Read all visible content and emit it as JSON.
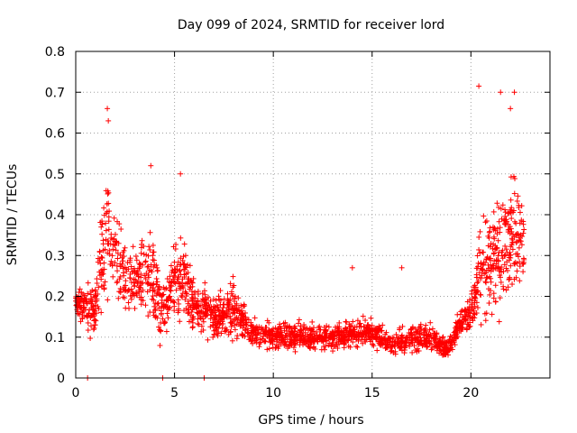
{
  "chart_data": {
    "type": "scatter",
    "title": "Day 099 of 2024, SRMTID for receiver lord",
    "xlabel": "GPS time / hours",
    "ylabel": "SRMTID / TECUs",
    "xlim": [
      0,
      24
    ],
    "ylim": [
      0,
      0.8
    ],
    "xticks": [
      0,
      5,
      10,
      15,
      20
    ],
    "xtick_labels": [
      "0",
      "5",
      "10",
      "15",
      "20"
    ],
    "yticks": [
      0,
      0.1,
      0.2,
      0.3,
      0.4,
      0.5,
      0.6,
      0.7,
      0.8
    ],
    "ytick_labels": [
      "0",
      "0.1",
      "0.2",
      "0.3",
      "0.4",
      "0.5",
      "0.6",
      "0.7",
      "0.8"
    ],
    "grid": true,
    "series": [
      {
        "name": "SRMTID",
        "marker": "plus",
        "color": "#ff0000",
        "approximate_envelope": [
          {
            "x": 0.0,
            "median": 0.19,
            "spread": 0.02
          },
          {
            "x": 0.7,
            "median": 0.16,
            "spread": 0.06
          },
          {
            "x": 1.0,
            "median": 0.17,
            "spread": 0.06
          },
          {
            "x": 1.3,
            "median": 0.3,
            "spread": 0.12
          },
          {
            "x": 1.6,
            "median": 0.36,
            "spread": 0.16
          },
          {
            "x": 2.0,
            "median": 0.3,
            "spread": 0.1
          },
          {
            "x": 2.5,
            "median": 0.25,
            "spread": 0.08
          },
          {
            "x": 3.0,
            "median": 0.23,
            "spread": 0.08
          },
          {
            "x": 3.5,
            "median": 0.25,
            "spread": 0.09
          },
          {
            "x": 4.0,
            "median": 0.22,
            "spread": 0.1
          },
          {
            "x": 4.5,
            "median": 0.15,
            "spread": 0.06
          },
          {
            "x": 5.0,
            "median": 0.25,
            "spread": 0.08
          },
          {
            "x": 5.5,
            "median": 0.24,
            "spread": 0.08
          },
          {
            "x": 6.0,
            "median": 0.18,
            "spread": 0.05
          },
          {
            "x": 6.5,
            "median": 0.16,
            "spread": 0.05
          },
          {
            "x": 7.0,
            "median": 0.15,
            "spread": 0.05
          },
          {
            "x": 7.5,
            "median": 0.16,
            "spread": 0.05
          },
          {
            "x": 8.0,
            "median": 0.17,
            "spread": 0.06
          },
          {
            "x": 8.5,
            "median": 0.14,
            "spread": 0.05
          },
          {
            "x": 9.0,
            "median": 0.11,
            "spread": 0.03
          },
          {
            "x": 10.0,
            "median": 0.1,
            "spread": 0.03
          },
          {
            "x": 11.0,
            "median": 0.1,
            "spread": 0.03
          },
          {
            "x": 12.0,
            "median": 0.1,
            "spread": 0.03
          },
          {
            "x": 13.0,
            "median": 0.1,
            "spread": 0.03
          },
          {
            "x": 14.0,
            "median": 0.11,
            "spread": 0.03
          },
          {
            "x": 15.0,
            "median": 0.11,
            "spread": 0.03
          },
          {
            "x": 16.0,
            "median": 0.08,
            "spread": 0.02
          },
          {
            "x": 17.0,
            "median": 0.1,
            "spread": 0.03
          },
          {
            "x": 18.0,
            "median": 0.1,
            "spread": 0.03
          },
          {
            "x": 18.8,
            "median": 0.07,
            "spread": 0.02
          },
          {
            "x": 19.5,
            "median": 0.14,
            "spread": 0.03
          },
          {
            "x": 20.0,
            "median": 0.16,
            "spread": 0.04
          },
          {
            "x": 20.5,
            "median": 0.28,
            "spread": 0.12
          },
          {
            "x": 21.0,
            "median": 0.28,
            "spread": 0.12
          },
          {
            "x": 21.5,
            "median": 0.32,
            "spread": 0.14
          },
          {
            "x": 22.0,
            "median": 0.35,
            "spread": 0.14
          },
          {
            "x": 22.5,
            "median": 0.32,
            "spread": 0.12
          },
          {
            "x": 22.7,
            "median": 0.34,
            "spread": 0.1
          }
        ],
        "notable_points": [
          {
            "x": 1.6,
            "y": 0.66
          },
          {
            "x": 1.65,
            "y": 0.63
          },
          {
            "x": 3.8,
            "y": 0.52
          },
          {
            "x": 5.3,
            "y": 0.5
          },
          {
            "x": 20.4,
            "y": 0.715
          },
          {
            "x": 21.5,
            "y": 0.7
          },
          {
            "x": 22.2,
            "y": 0.7
          },
          {
            "x": 22.0,
            "y": 0.66
          },
          {
            "x": 0.6,
            "y": 0.0
          },
          {
            "x": 4.4,
            "y": 0.0
          },
          {
            "x": 6.5,
            "y": 0.0
          },
          {
            "x": 16.5,
            "y": 0.27
          },
          {
            "x": 14.0,
            "y": 0.27
          }
        ]
      }
    ]
  }
}
